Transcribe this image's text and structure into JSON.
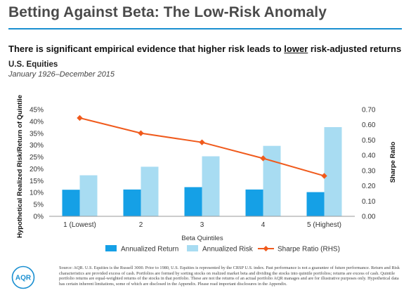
{
  "header": {
    "title": "Betting Against Beta: The Low-Risk Anomaly",
    "subtitle_pre": "There is significant empirical evidence that higher risk leads to ",
    "subtitle_underlined": "lower",
    "subtitle_post": " risk-adjusted returns"
  },
  "section": {
    "title": "U.S. Equities",
    "period": "January 1926–December 2015"
  },
  "colors": {
    "annualized_return": "#15a0e6",
    "annualized_risk": "#a8dcf2",
    "sharpe_ratio": "#f05a1c",
    "rule": "#1a8fd1"
  },
  "chart_data": {
    "type": "bar",
    "xlabel": "Beta Quintiles",
    "ylabel": "Hypothetical Realized Risk/Return of Quintile",
    "y2label": "Sharpe Ratio",
    "categories": [
      "1 (Lowest)",
      "2",
      "3",
      "4",
      "5 (Highest)"
    ],
    "ylim": [
      0,
      0.45
    ],
    "y_ticks": [
      "0%",
      "5%",
      "10%",
      "15%",
      "20%",
      "25%",
      "30%",
      "35%",
      "40%",
      "45%"
    ],
    "y_tick_values": [
      0,
      0.05,
      0.1,
      0.15,
      0.2,
      0.25,
      0.3,
      0.35,
      0.4,
      0.45
    ],
    "y2lim": [
      0,
      0.7
    ],
    "y2_ticks": [
      "0.00",
      "0.10",
      "0.20",
      "0.30",
      "0.40",
      "0.50",
      "0.60",
      "0.70"
    ],
    "y2_tick_values": [
      0,
      0.1,
      0.2,
      0.3,
      0.4,
      0.5,
      0.6,
      0.7
    ],
    "grid": false,
    "legend_placement": "bottom",
    "series": [
      {
        "name": "Annualized Return",
        "kind": "bar",
        "axis": "left",
        "values": [
          0.112,
          0.113,
          0.123,
          0.113,
          0.102
        ]
      },
      {
        "name": "Annualized Risk",
        "kind": "bar",
        "axis": "left",
        "values": [
          0.173,
          0.209,
          0.253,
          0.297,
          0.376
        ]
      },
      {
        "name": "Sharpe Ratio (RHS)",
        "kind": "line",
        "axis": "right",
        "values": [
          0.645,
          0.545,
          0.485,
          0.38,
          0.265
        ]
      }
    ]
  },
  "logo": {
    "text": "AQR"
  },
  "footnote": "Source: AQR. U.S. Equities is the Russell 3000. Prior to 1980, U.S. Equities is represented by the CRSP U.S. index. Past performance is not a guarantee of future performance. Return and Risk characteristics are provided excess of cash. Portfolios are formed by sorting stocks on realized market beta and dividing the stocks into quintile portfolios; returns are excess of cash. Quintile portfolio returns are equal-weighted returns of the stocks in that portfolio. These are not the returns of an actual portfolio AQR manages and are for illustrative purposes only. Hypothetical data has certain inherent limitations, some of which are disclosed in the Appendix. Please read important disclosures in the Appendix."
}
